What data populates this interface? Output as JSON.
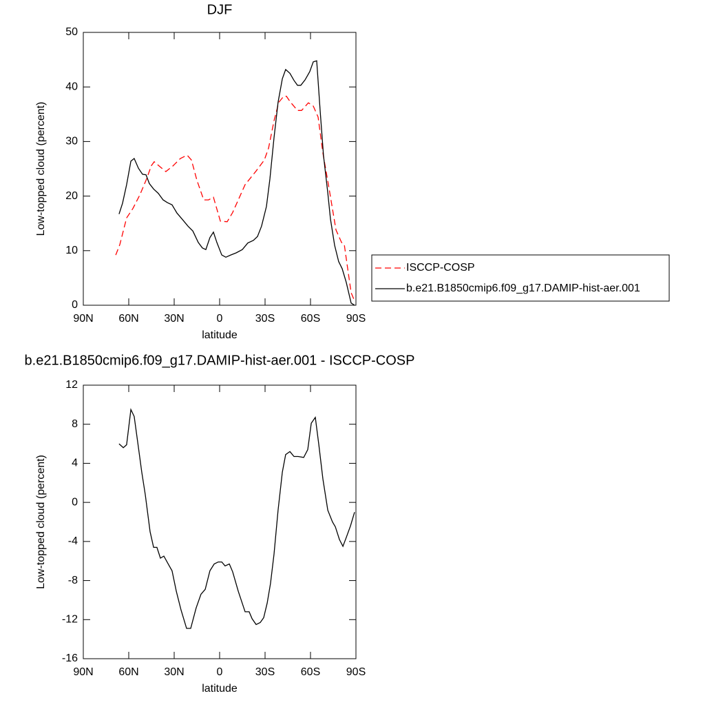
{
  "chart_data": [
    {
      "type": "line",
      "title": "DJF",
      "x_label": "latitude",
      "y_label": "Low-topped cloud (percent)",
      "xlim": [
        90,
        -90
      ],
      "xticks": [
        {
          "value": 90,
          "label": "90N"
        },
        {
          "value": 60,
          "label": "60N"
        },
        {
          "value": 30,
          "label": "30N"
        },
        0,
        {
          "value": -30,
          "label": "30S"
        },
        {
          "value": -60,
          "label": "60S"
        },
        {
          "value": -90,
          "label": "90S"
        }
      ],
      "ylim": [
        0,
        50
      ],
      "yticks": [
        0,
        10,
        20,
        30,
        40,
        50
      ],
      "legend": "right",
      "series": [
        {
          "name": "ISCCP-COSP",
          "color": "#ff0000",
          "dash": true,
          "x": [
            68.6,
            65.9,
            61.4,
            57.3,
            52.7,
            48.6,
            45.0,
            43.2,
            39.5,
            35.5,
            30.9,
            25.9,
            21.4,
            18.6,
            15.0,
            10.5,
            7.3,
            4.1,
            -0.5,
            -5.0,
            -8.6,
            -16.8,
            -24.1,
            -29.5,
            -32.3,
            -35.9,
            -39.1,
            -42.3,
            -44.1,
            -46.8,
            -51.4,
            -54.1,
            -58.6,
            -61.8,
            -65.0,
            -68.2,
            -72.3,
            -76.8,
            -80.5,
            -82.3,
            -84.1,
            -86.8,
            -89.1
          ],
          "values": [
            9.2,
            11.1,
            16.0,
            17.7,
            20.2,
            22.9,
            25.6,
            26.3,
            25.4,
            24.5,
            25.5,
            26.9,
            27.5,
            26.6,
            22.9,
            19.3,
            19.3,
            19.8,
            15.4,
            15.3,
            17.0,
            22.1,
            24.6,
            26.6,
            28.8,
            33.8,
            37.2,
            38.3,
            38.3,
            37.2,
            35.7,
            35.7,
            37.1,
            36.5,
            34.5,
            27.9,
            21.3,
            13.8,
            11.5,
            11.1,
            7.6,
            2.3,
            0.8
          ]
        },
        {
          "name": "b.e21.B1850cmip6.f09_g17.DAMIP-hist-aer.001",
          "color": "#000000",
          "dash": false,
          "x": [
            66.4,
            64.1,
            61.4,
            58.6,
            56.4,
            53.6,
            50.9,
            48.6,
            46.4,
            43.6,
            40.5,
            37.3,
            34.5,
            31.4,
            28.2,
            24.5,
            20.9,
            17.7,
            14.1,
            11.4,
            9.1,
            6.4,
            4.1,
            1.8,
            -1.4,
            -4.1,
            -7.3,
            -10.9,
            -15.0,
            -18.6,
            -22.3,
            -25.0,
            -27.7,
            -30.9,
            -33.2,
            -35.9,
            -38.6,
            -41.4,
            -43.6,
            -46.4,
            -49.1,
            -51.4,
            -53.6,
            -56.4,
            -59.5,
            -61.8,
            -64.1,
            -66.4,
            -68.6,
            -71.4,
            -73.2,
            -75.9,
            -78.6,
            -80.9,
            -83.6,
            -86.8,
            -89.1
          ],
          "values": [
            16.7,
            18.7,
            22.1,
            26.4,
            26.9,
            25.1,
            24.0,
            23.9,
            22.3,
            21.3,
            20.5,
            19.3,
            18.8,
            18.4,
            16.9,
            15.7,
            14.5,
            13.6,
            11.5,
            10.5,
            10.2,
            12.4,
            13.4,
            11.5,
            9.2,
            8.8,
            9.2,
            9.6,
            10.2,
            11.4,
            11.9,
            12.6,
            14.5,
            18.1,
            23.1,
            30.7,
            37.2,
            41.5,
            43.2,
            42.5,
            41.2,
            40.3,
            40.3,
            41.3,
            42.8,
            44.6,
            44.8,
            35.5,
            27.4,
            20.6,
            15.8,
            11.0,
            8.0,
            6.7,
            4.2,
            0.4,
            0.0
          ]
        }
      ]
    },
    {
      "type": "line",
      "title": "b.e21.B1850cmip6.f09_g17.DAMIP-hist-aer.001 - ISCCP-COSP",
      "x_label": "latitude",
      "y_label": "Low-topped cloud (percent)",
      "xlim": [
        90,
        -90
      ],
      "xticks": [
        {
          "value": 90,
          "label": "90N"
        },
        {
          "value": 60,
          "label": "60N"
        },
        {
          "value": 30,
          "label": "30N"
        },
        0,
        {
          "value": -30,
          "label": "30S"
        },
        {
          "value": -60,
          "label": "60S"
        },
        {
          "value": -90,
          "label": "90S"
        }
      ],
      "ylim": [
        -16,
        12
      ],
      "yticks": [
        -16,
        -12,
        -8,
        -4,
        0,
        4,
        8,
        12
      ],
      "series": [
        {
          "color": "#000000",
          "dash": false,
          "x": [
            66.4,
            63.6,
            61.4,
            58.6,
            56.4,
            53.6,
            51.4,
            49.1,
            45.9,
            43.6,
            41.4,
            39.1,
            36.8,
            33.6,
            31.4,
            28.6,
            25.5,
            21.8,
            19.1,
            15.5,
            12.3,
            9.5,
            6.4,
            3.6,
            0.9,
            -1.4,
            -3.6,
            -6.4,
            -8.6,
            -12.3,
            -16.8,
            -19.5,
            -21.4,
            -24.1,
            -26.8,
            -29.1,
            -31.4,
            -33.6,
            -35.9,
            -38.6,
            -41.4,
            -43.6,
            -46.4,
            -49.1,
            -51.8,
            -55.5,
            -58.2,
            -60.5,
            -63.2,
            -65.5,
            -68.2,
            -71.4,
            -74.5,
            -76.4,
            -79.1,
            -81.4,
            -83.6,
            -86.4,
            -89.1
          ],
          "values": [
            6.0,
            5.6,
            5.9,
            9.5,
            8.8,
            5.6,
            3.1,
            0.8,
            -3.0,
            -4.6,
            -4.6,
            -5.7,
            -5.5,
            -6.4,
            -7.0,
            -9.1,
            -11.0,
            -12.9,
            -12.9,
            -10.8,
            -9.4,
            -8.9,
            -7.0,
            -6.3,
            -6.1,
            -6.1,
            -6.5,
            -6.3,
            -7.1,
            -9.1,
            -11.2,
            -11.2,
            -11.9,
            -12.5,
            -12.3,
            -11.8,
            -10.3,
            -8.3,
            -5.3,
            -0.8,
            3.1,
            4.9,
            5.2,
            4.7,
            4.7,
            4.6,
            5.4,
            8.1,
            8.7,
            5.9,
            2.4,
            -0.8,
            -2.0,
            -2.5,
            -3.8,
            -4.5,
            -3.6,
            -2.4,
            -1.0
          ]
        }
      ]
    }
  ]
}
